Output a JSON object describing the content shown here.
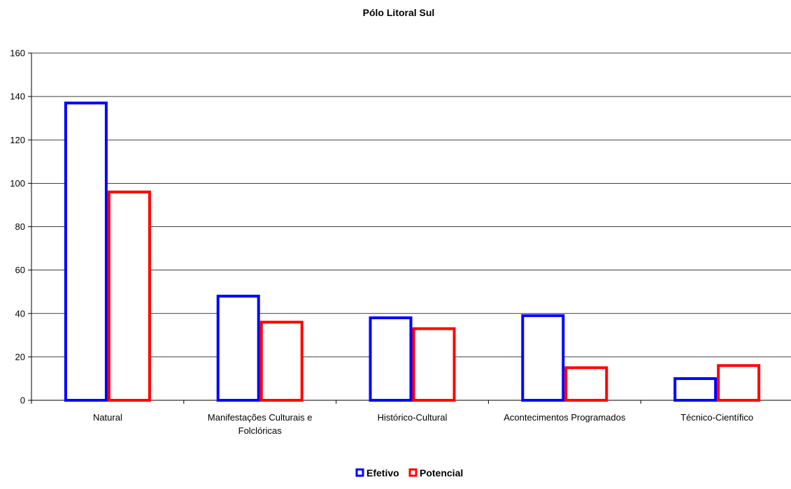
{
  "chart_data": {
    "type": "bar",
    "title": "Pólo Litoral Sul",
    "xlabel": "",
    "ylabel": "",
    "ylim": [
      0,
      160
    ],
    "yticks": [
      0,
      20,
      40,
      60,
      80,
      100,
      120,
      140,
      160
    ],
    "grid": true,
    "legend_position": "bottom",
    "categories": [
      [
        "Natural"
      ],
      [
        "Manifestações Culturais e",
        "Folclóricas"
      ],
      [
        "Histórico-Cultural"
      ],
      [
        "Acontecimentos Programados"
      ],
      [
        "Técnico-Científico"
      ]
    ],
    "series": [
      {
        "name": "Efetivo",
        "color": "#0000ff",
        "values": [
          137,
          48,
          38,
          39,
          10
        ]
      },
      {
        "name": "Potencial",
        "color": "#ff0000",
        "values": [
          96,
          36,
          33,
          15,
          16
        ]
      }
    ]
  }
}
